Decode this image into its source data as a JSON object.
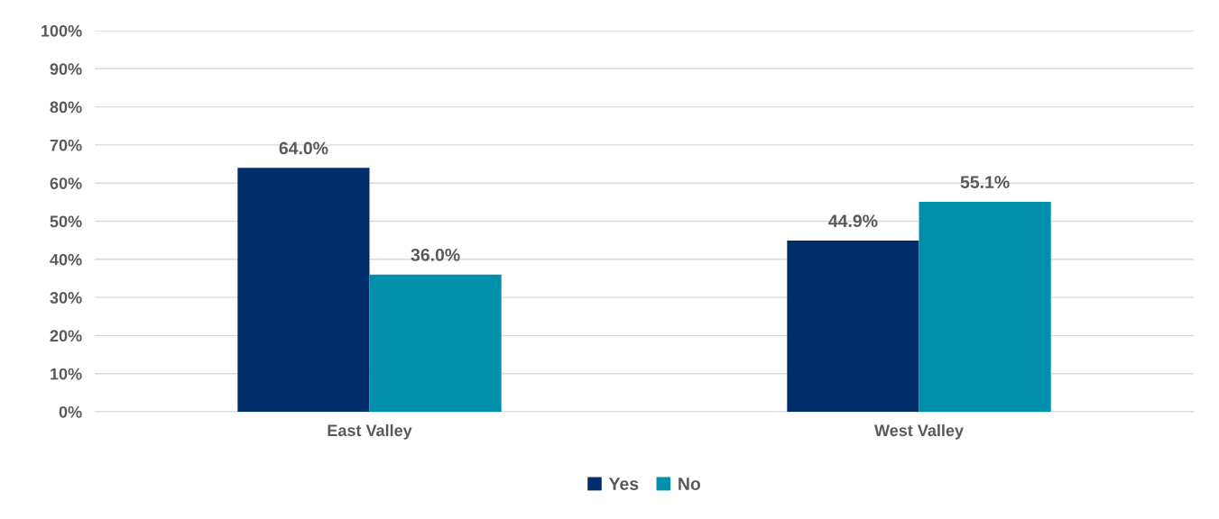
{
  "chart_data": {
    "type": "bar",
    "categories": [
      "East Valley",
      "West Valley"
    ],
    "series": [
      {
        "name": "Yes",
        "color": "#002e6b",
        "values": [
          64.0,
          44.9
        ],
        "value_labels": [
          "64.0%",
          "44.9%"
        ]
      },
      {
        "name": "No",
        "color": "#008faa",
        "values": [
          36.0,
          55.1
        ],
        "value_labels": [
          "36.0%",
          "55.1%"
        ]
      }
    ],
    "ylim": [
      0,
      100
    ],
    "yticks": [
      {
        "value": 0,
        "label": "0%"
      },
      {
        "value": 10,
        "label": "10%"
      },
      {
        "value": 20,
        "label": "20%"
      },
      {
        "value": 30,
        "label": "30%"
      },
      {
        "value": 40,
        "label": "40%"
      },
      {
        "value": 50,
        "label": "50%"
      },
      {
        "value": 60,
        "label": "60%"
      },
      {
        "value": 70,
        "label": "70%"
      },
      {
        "value": 80,
        "label": "80%"
      },
      {
        "value": 90,
        "label": "90%"
      },
      {
        "value": 100,
        "label": "100%"
      }
    ],
    "grid": "y",
    "legend": "bottom"
  }
}
